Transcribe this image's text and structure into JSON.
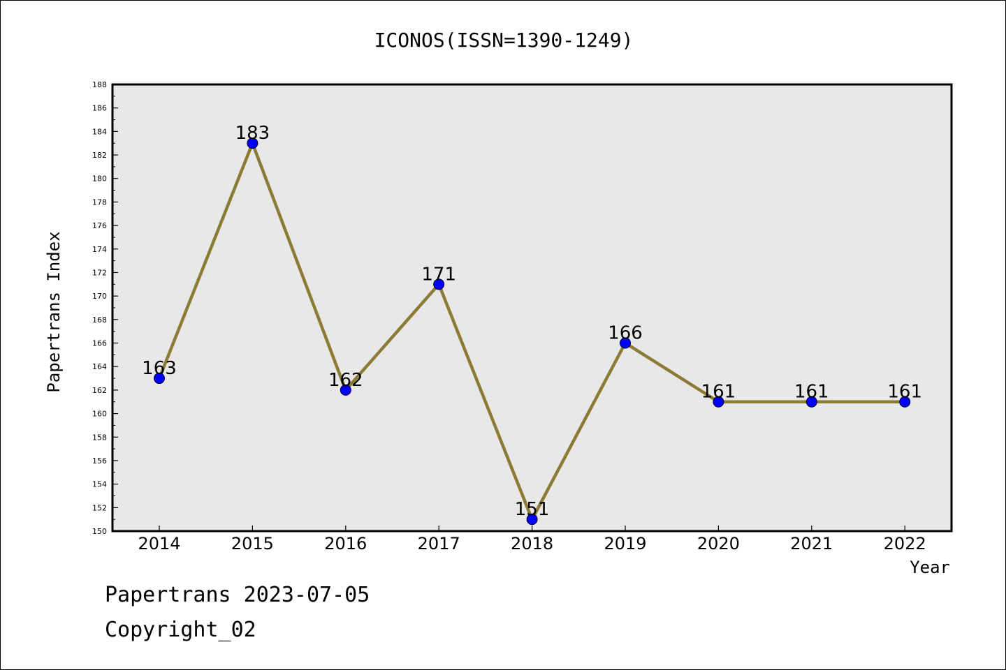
{
  "chart_data": {
    "type": "line",
    "title": "ICONOS(ISSN=1390-1249)",
    "xlabel": "Year",
    "ylabel": "Papertrans Index",
    "categories": [
      "2014",
      "2015",
      "2016",
      "2017",
      "2018",
      "2019",
      "2020",
      "2021",
      "2022"
    ],
    "values": [
      163,
      183,
      162,
      171,
      151,
      166,
      161,
      161,
      161
    ],
    "data_labels": [
      "163",
      "183",
      "162",
      "171",
      "151",
      "166",
      "161",
      "161",
      "161"
    ],
    "ylim": [
      150,
      188
    ],
    "y_ticks": [
      "150",
      "152",
      "154",
      "156",
      "158",
      "160",
      "162",
      "164",
      "166",
      "168",
      "170",
      "172",
      "174",
      "176",
      "178",
      "180",
      "182",
      "184",
      "186",
      "188"
    ],
    "grid": false,
    "legend": "none",
    "colors": {
      "line": "#8B7B35",
      "marker": "#0000FF",
      "plot_background": "#E8E8E8",
      "frame": "#000000"
    }
  },
  "footer": {
    "date_line": "Papertrans 2023-07-05",
    "copyright": "Copyright_02"
  }
}
